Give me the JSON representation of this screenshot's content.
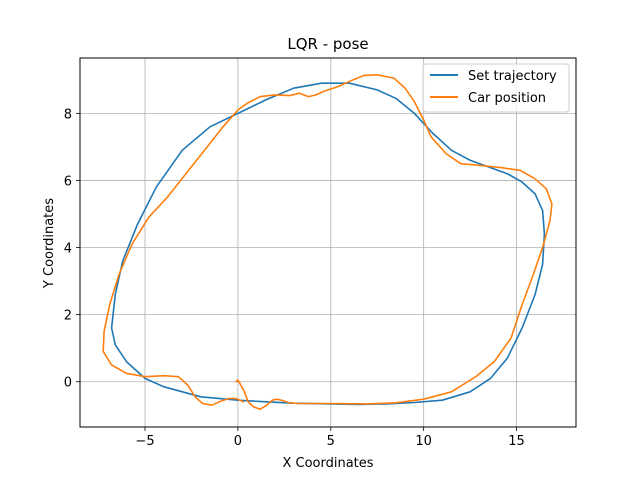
{
  "chart_data": {
    "type": "line",
    "title": "LQR - pose",
    "xlabel": "X Coordinates",
    "ylabel": "Y Coordinates",
    "xlim": [
      -8.5,
      18.2
    ],
    "ylim": [
      -1.35,
      9.65
    ],
    "xticks": [
      -5,
      0,
      5,
      10,
      15
    ],
    "yticks": [
      0,
      2,
      4,
      6,
      8
    ],
    "grid": true,
    "legend_position": "top-right",
    "colors": {
      "set": "#1f77b4",
      "car": "#ff7f0e",
      "grid": "#b0b0b0"
    },
    "series": [
      {
        "name": "Set trajectory",
        "color": "#1f77b4",
        "points": [
          [
            0.0,
            -0.55
          ],
          [
            -2.0,
            -0.45
          ],
          [
            -4.0,
            -0.15
          ],
          [
            -5.0,
            0.1
          ],
          [
            -6.0,
            0.6
          ],
          [
            -6.6,
            1.1
          ],
          [
            -6.8,
            1.6
          ],
          [
            -6.6,
            2.6
          ],
          [
            -6.2,
            3.6
          ],
          [
            -5.4,
            4.7
          ],
          [
            -4.4,
            5.8
          ],
          [
            -3.0,
            6.9
          ],
          [
            -1.5,
            7.6
          ],
          [
            0.0,
            8.0
          ],
          [
            1.5,
            8.4
          ],
          [
            3.0,
            8.75
          ],
          [
            4.5,
            8.9
          ],
          [
            6.0,
            8.9
          ],
          [
            7.5,
            8.7
          ],
          [
            8.5,
            8.45
          ],
          [
            9.5,
            8.0
          ],
          [
            10.5,
            7.4
          ],
          [
            11.5,
            6.9
          ],
          [
            12.5,
            6.6
          ],
          [
            13.5,
            6.4
          ],
          [
            14.5,
            6.2
          ],
          [
            15.3,
            5.95
          ],
          [
            16.0,
            5.6
          ],
          [
            16.4,
            5.1
          ],
          [
            16.5,
            4.4
          ],
          [
            16.4,
            3.5
          ],
          [
            16.0,
            2.6
          ],
          [
            15.3,
            1.6
          ],
          [
            14.5,
            0.7
          ],
          [
            13.6,
            0.1
          ],
          [
            12.5,
            -0.3
          ],
          [
            11.0,
            -0.55
          ],
          [
            9.5,
            -0.62
          ],
          [
            8.0,
            -0.66
          ],
          [
            6.5,
            -0.68
          ],
          [
            5.0,
            -0.66
          ],
          [
            3.0,
            -0.64
          ],
          [
            1.5,
            -0.6
          ],
          [
            0.0,
            -0.55
          ]
        ]
      },
      {
        "name": "Car position",
        "color": "#ff7f0e",
        "points": [
          [
            -0.1,
            0.0
          ],
          [
            0.0,
            0.05
          ],
          [
            0.1,
            -0.05
          ],
          [
            0.35,
            -0.3
          ],
          [
            0.55,
            -0.6
          ],
          [
            0.85,
            -0.75
          ],
          [
            1.2,
            -0.82
          ],
          [
            1.55,
            -0.7
          ],
          [
            1.85,
            -0.55
          ],
          [
            2.1,
            -0.52
          ],
          [
            2.4,
            -0.56
          ],
          [
            2.7,
            -0.62
          ],
          [
            3.2,
            -0.65
          ],
          [
            5.0,
            -0.65
          ],
          [
            7.0,
            -0.66
          ],
          [
            8.5,
            -0.63
          ],
          [
            10.0,
            -0.52
          ],
          [
            11.5,
            -0.3
          ],
          [
            12.8,
            0.15
          ],
          [
            13.8,
            0.6
          ],
          [
            14.7,
            1.3
          ],
          [
            15.3,
            2.3
          ],
          [
            15.9,
            3.2
          ],
          [
            16.4,
            4.0
          ],
          [
            16.8,
            4.8
          ],
          [
            16.9,
            5.3
          ],
          [
            16.6,
            5.75
          ],
          [
            16.0,
            6.05
          ],
          [
            15.2,
            6.3
          ],
          [
            14.2,
            6.38
          ],
          [
            13.0,
            6.45
          ],
          [
            12.0,
            6.5
          ],
          [
            11.2,
            6.8
          ],
          [
            10.4,
            7.3
          ],
          [
            10.0,
            7.8
          ],
          [
            9.5,
            8.35
          ],
          [
            9.0,
            8.75
          ],
          [
            8.4,
            9.05
          ],
          [
            7.5,
            9.15
          ],
          [
            6.8,
            9.13
          ],
          [
            6.2,
            9.0
          ],
          [
            5.4,
            8.8
          ],
          [
            4.6,
            8.65
          ],
          [
            4.2,
            8.55
          ],
          [
            3.8,
            8.5
          ],
          [
            3.3,
            8.6
          ],
          [
            2.8,
            8.53
          ],
          [
            2.0,
            8.55
          ],
          [
            1.2,
            8.5
          ],
          [
            0.5,
            8.3
          ],
          [
            0.0,
            8.1
          ],
          [
            -0.8,
            7.6
          ],
          [
            -1.8,
            6.9
          ],
          [
            -2.8,
            6.2
          ],
          [
            -3.8,
            5.5
          ],
          [
            -4.8,
            4.9
          ],
          [
            -5.7,
            4.1
          ],
          [
            -6.4,
            3.2
          ],
          [
            -6.9,
            2.3
          ],
          [
            -7.2,
            1.5
          ],
          [
            -7.25,
            0.9
          ],
          [
            -6.8,
            0.5
          ],
          [
            -6.0,
            0.25
          ],
          [
            -5.0,
            0.15
          ],
          [
            -4.0,
            0.18
          ],
          [
            -3.2,
            0.15
          ],
          [
            -2.7,
            -0.1
          ],
          [
            -2.3,
            -0.45
          ],
          [
            -1.9,
            -0.65
          ],
          [
            -1.4,
            -0.7
          ],
          [
            -1.0,
            -0.6
          ],
          [
            -0.5,
            -0.5
          ],
          [
            -0.1,
            -0.5
          ],
          [
            0.3,
            -0.6
          ]
        ]
      }
    ]
  }
}
